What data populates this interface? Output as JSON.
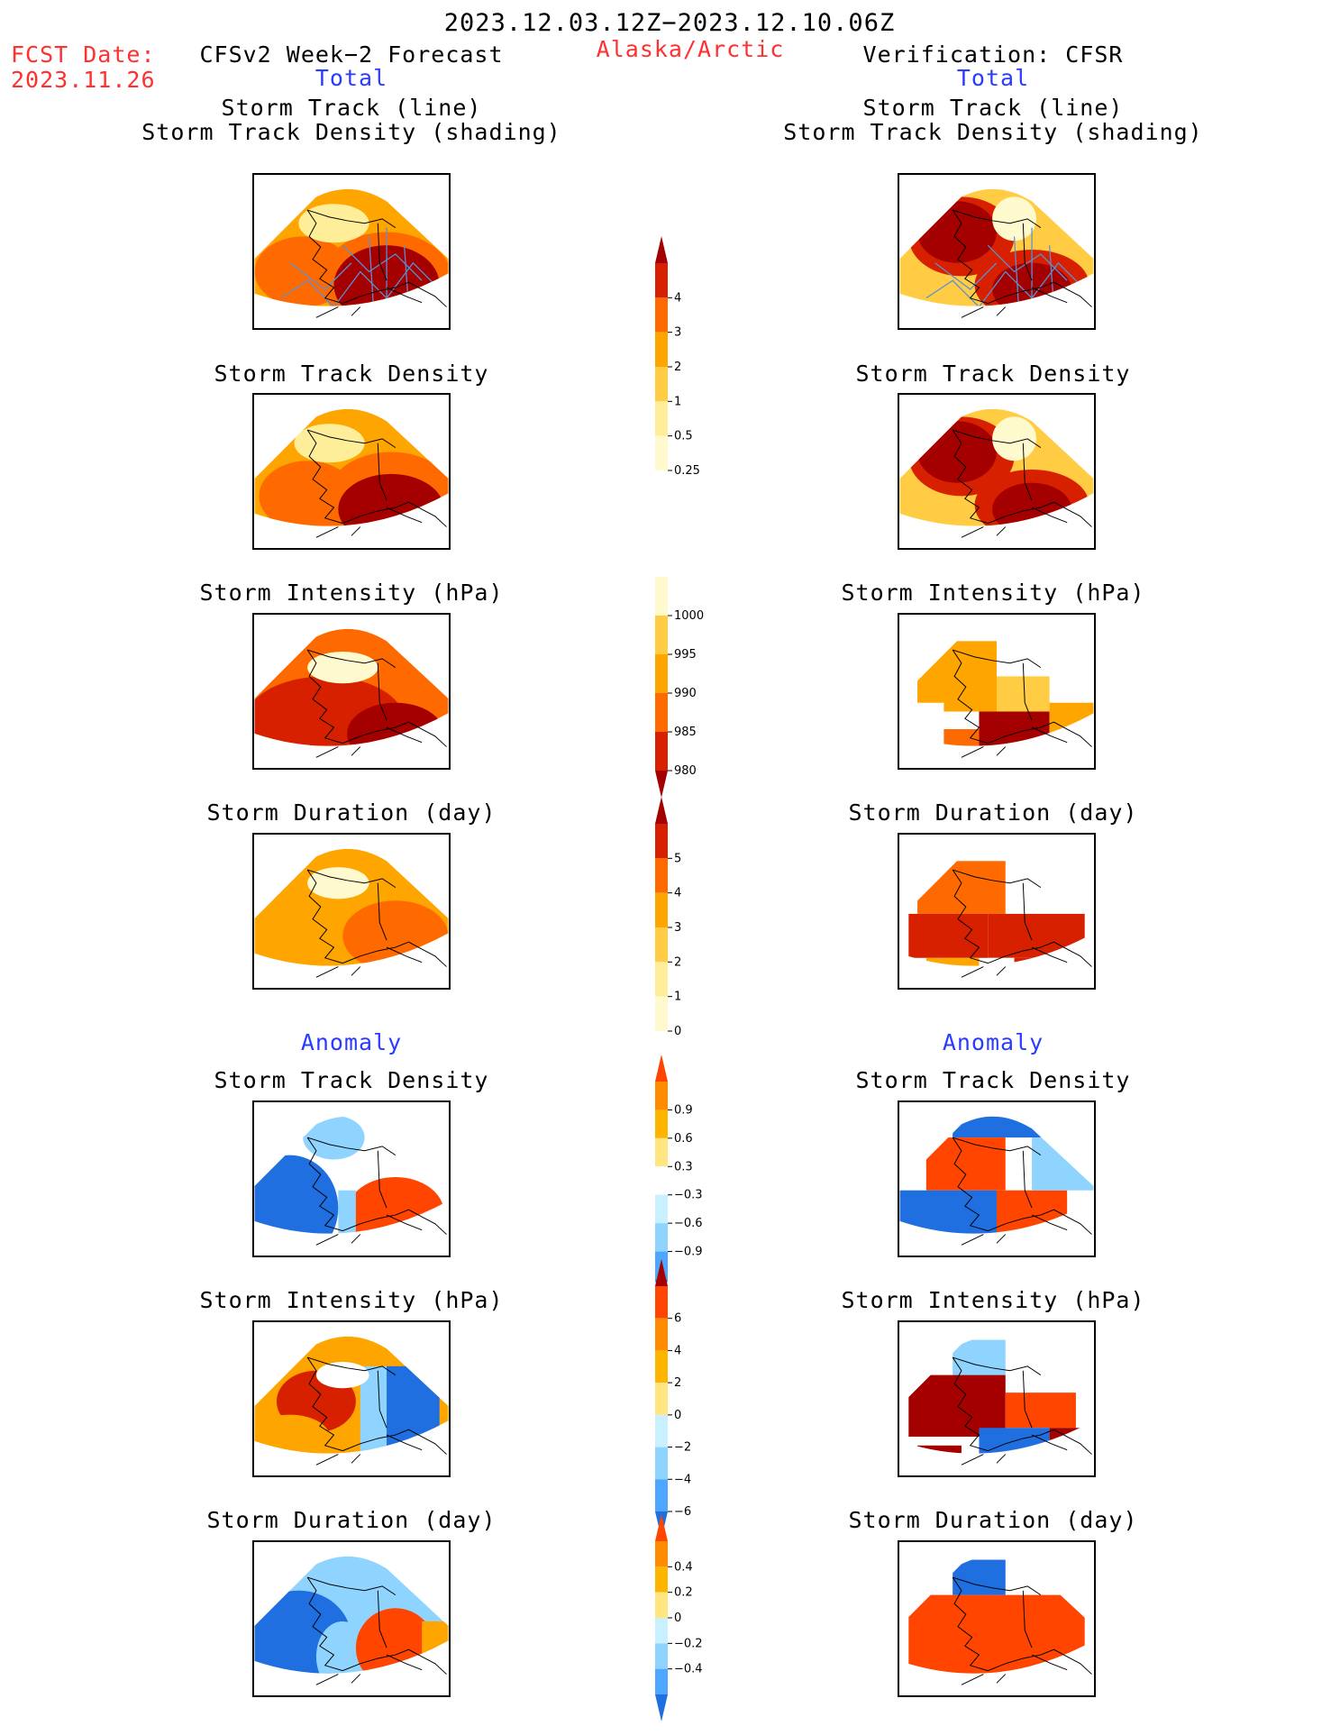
{
  "header": {
    "date_range": "2023.12.03.12Z−2023.12.10.06Z",
    "fcst_label": "FCST Date:",
    "fcst_date": "2023.11.26",
    "left_title": "CFSv2 Week−2 Forecast",
    "region": "Alaska/Arctic",
    "right_title": "Verification: CFSR",
    "left_sub": "Total",
    "right_sub": "Total"
  },
  "anomaly": {
    "left": "Anomaly",
    "right": "Anomaly"
  },
  "panels": {
    "track_line_1": "Storm Track (line)",
    "track_line_2": "Storm Track Density (shading)",
    "track_density": "Storm Track Density",
    "intensity": "Storm Intensity (hPa)",
    "duration": "Storm Duration (day)"
  },
  "colorbars": [
    {
      "id": "density",
      "labels": [
        "4",
        "3",
        "2",
        "1",
        "0.5",
        "0.25"
      ],
      "colors": [
        "#a50000",
        "#d62000",
        "#ff6a00",
        "#ffa500",
        "#ffcc44",
        "#ffee99",
        "#fffacd"
      ],
      "dir": "up"
    },
    {
      "id": "intensity",
      "labels": [
        "1000",
        "995",
        "990",
        "985",
        "980"
      ],
      "colors": [
        "#fffacd",
        "#ffcc44",
        "#ffa500",
        "#ff6a00",
        "#d62000",
        "#a50000"
      ],
      "dir": "down"
    },
    {
      "id": "duration",
      "labels": [
        "5",
        "4",
        "3",
        "2",
        "1",
        "0"
      ],
      "colors": [
        "#a50000",
        "#d62000",
        "#ff6a00",
        "#ffa500",
        "#ffcc44",
        "#ffee99",
        "#fffacd"
      ],
      "dir": "up"
    },
    {
      "id": "anom_density",
      "labels": [
        "0.9",
        "0.6",
        "0.3",
        "−0.3",
        "−0.6",
        "−0.9"
      ],
      "colors": [
        "#ff4500",
        "#ff8c00",
        "#ffb400",
        "#ffe680",
        "#ffffff",
        "#c8f0ff",
        "#8fd4ff",
        "#4da6ff",
        "#1f6fe0"
      ],
      "dir": "both"
    },
    {
      "id": "anom_intensity",
      "labels": [
        "6",
        "4",
        "2",
        "0",
        "−2",
        "−4",
        "−6"
      ],
      "colors": [
        "#a50000",
        "#ff4500",
        "#ff8c00",
        "#ffb400",
        "#ffe680",
        "#c8f0ff",
        "#8fd4ff",
        "#4da6ff",
        "#1f6fe0"
      ],
      "dir": "both"
    },
    {
      "id": "anom_duration",
      "labels": [
        "0.4",
        "0.2",
        "0",
        "−0.2",
        "−0.4"
      ],
      "colors": [
        "#ff4500",
        "#ff8c00",
        "#ffb400",
        "#ffe680",
        "#c8f0ff",
        "#8fd4ff",
        "#4da6ff",
        "#1f6fe0"
      ],
      "dir": "both"
    }
  ],
  "colors": {
    "red_text": "#ff3030",
    "blue_text": "#2a3cff",
    "dark_red": "#a50000",
    "red": "#d62000",
    "orange_red": "#ff6a00",
    "orange": "#ffa500",
    "light_orange": "#ffcc44",
    "pale_yellow": "#ffee99",
    "cream": "#fffacd",
    "track_line": "#5b8fd6",
    "anom_blue": "#1f6fe0",
    "anom_lightblue": "#8fd4ff",
    "anom_red": "#ff4500"
  }
}
